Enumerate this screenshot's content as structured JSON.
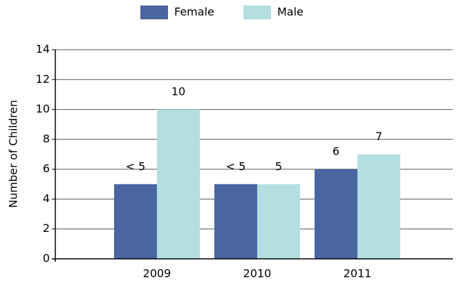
{
  "chart_data": {
    "type": "bar",
    "y_label": "Number of Children",
    "categories": [
      "2009",
      "2010",
      "2011"
    ],
    "series": [
      {
        "name": "Female",
        "color": "#4a66a0",
        "values": [
          5,
          5,
          6
        ],
        "value_labels": [
          "< 5",
          "< 5",
          "6"
        ]
      },
      {
        "name": "Male",
        "color": "#b3dfe0",
        "values": [
          10,
          5,
          7
        ],
        "value_labels": [
          "10",
          "5",
          "7"
        ]
      }
    ],
    "ylim": [
      0,
      14
    ],
    "yticks": [
      0,
      2,
      4,
      6,
      8,
      10,
      12,
      14
    ],
    "grid": true,
    "legend": "top"
  }
}
